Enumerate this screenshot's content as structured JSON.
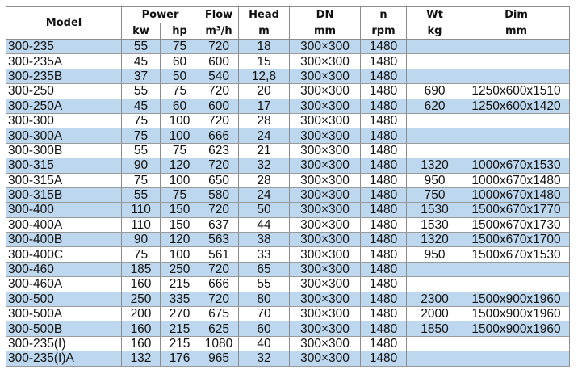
{
  "header": {
    "model": "Model",
    "power": "Power",
    "kw": "kw",
    "hp": "hp",
    "flow": "Flow",
    "flow_unit": "m³/h",
    "head": "Head",
    "head_unit": "m",
    "dn": "DN",
    "dn_unit": "mm",
    "n": "n",
    "n_unit": "rpm",
    "wt": "Wt",
    "wt_unit": "kg",
    "dim": "Dim",
    "dim_unit": "mm"
  },
  "colors": {
    "highlight": "#bdd7ee",
    "plain": "#ffffff"
  },
  "rows": [
    {
      "model": "300-235",
      "kw": "55",
      "hp": "75",
      "flow": "720",
      "head": "18",
      "dn": "300×300",
      "n": "1480",
      "wt": "",
      "dim": "",
      "highlighted": true
    },
    {
      "model": "300-235A",
      "kw": "45",
      "hp": "60",
      "flow": "600",
      "head": "15",
      "dn": "300×300",
      "n": "1480",
      "wt": "",
      "dim": "",
      "highlighted": false
    },
    {
      "model": "300-235B",
      "kw": "37",
      "hp": "50",
      "flow": "540",
      "head": "12,8",
      "dn": "300×300",
      "n": "1480",
      "wt": "",
      "dim": "",
      "highlighted": true
    },
    {
      "model": "300-250",
      "kw": "55",
      "hp": "75",
      "flow": "720",
      "head": "20",
      "dn": "300×300",
      "n": "1480",
      "wt": "690",
      "dim": "1250x600x1510",
      "highlighted": false
    },
    {
      "model": "300-250A",
      "kw": "45",
      "hp": "60",
      "flow": "600",
      "head": "17",
      "dn": "300×300",
      "n": "1480",
      "wt": "620",
      "dim": "1250x600x1420",
      "highlighted": true
    },
    {
      "model": "300-300",
      "kw": "75",
      "hp": "100",
      "flow": "720",
      "head": "28",
      "dn": "300×300",
      "n": "1480",
      "wt": "",
      "dim": "",
      "highlighted": false
    },
    {
      "model": "300-300A",
      "kw": "75",
      "hp": "100",
      "flow": "666",
      "head": "24",
      "dn": "300×300",
      "n": "1480",
      "wt": "",
      "dim": "",
      "highlighted": true
    },
    {
      "model": "300-300B",
      "kw": "55",
      "hp": "75",
      "flow": "623",
      "head": "21",
      "dn": "300×300",
      "n": "1480",
      "wt": "",
      "dim": "",
      "highlighted": false
    },
    {
      "model": "300-315",
      "kw": "90",
      "hp": "120",
      "flow": "720",
      "head": "32",
      "dn": "300×300",
      "n": "1480",
      "wt": "1320",
      "dim": "1000x670x1530",
      "highlighted": true
    },
    {
      "model": "300-315A",
      "kw": "75",
      "hp": "100",
      "flow": "650",
      "head": "28",
      "dn": "300×300",
      "n": "1480",
      "wt": "950",
      "dim": "1000x670x1480",
      "highlighted": false
    },
    {
      "model": "300-315B",
      "kw": "55",
      "hp": "75",
      "flow": "580",
      "head": "24",
      "dn": "300×300",
      "n": "1480",
      "wt": "750",
      "dim": "1000x670x1480",
      "highlighted": true
    },
    {
      "model": "300-400",
      "kw": "110",
      "hp": "150",
      "flow": "720",
      "head": "50",
      "dn": "300×300",
      "n": "1480",
      "wt": "1530",
      "dim": "1500x670x1770",
      "highlighted": true
    },
    {
      "model": "300-400A",
      "kw": "110",
      "hp": "150",
      "flow": "637",
      "head": "44",
      "dn": "300×300",
      "n": "1480",
      "wt": "1530",
      "dim": "1500x670x1730",
      "highlighted": false
    },
    {
      "model": "300-400B",
      "kw": "90",
      "hp": "120",
      "flow": "563",
      "head": "38",
      "dn": "300×300",
      "n": "1480",
      "wt": "1320",
      "dim": "1500x670x1700",
      "highlighted": true
    },
    {
      "model": "300-400C",
      "kw": "75",
      "hp": "100",
      "flow": "561",
      "head": "33",
      "dn": "300×300",
      "n": "1480",
      "wt": "950",
      "dim": "1500x670x1530",
      "highlighted": false
    },
    {
      "model": "300-460",
      "kw": "185",
      "hp": "250",
      "flow": "720",
      "head": "65",
      "dn": "300×300",
      "n": "1480",
      "wt": "",
      "dim": "",
      "highlighted": true
    },
    {
      "model": "300-460A",
      "kw": "160",
      "hp": "215",
      "flow": "666",
      "head": "55",
      "dn": "300×300",
      "n": "1480",
      "wt": "",
      "dim": "",
      "highlighted": false
    },
    {
      "model": "300-500",
      "kw": "250",
      "hp": "335",
      "flow": "720",
      "head": "80",
      "dn": "300×300",
      "n": "1480",
      "wt": "2300",
      "dim": "1500x900x1960",
      "highlighted": true
    },
    {
      "model": "300-500A",
      "kw": "200",
      "hp": "270",
      "flow": "675",
      "head": "70",
      "dn": "300×300",
      "n": "1480",
      "wt": "2000",
      "dim": "1500x900x1960",
      "highlighted": false
    },
    {
      "model": "300-500B",
      "kw": "160",
      "hp": "215",
      "flow": "625",
      "head": "60",
      "dn": "300×300",
      "n": "1480",
      "wt": "1850",
      "dim": "1500x900x1960",
      "highlighted": true
    },
    {
      "model": "300-235(I)",
      "kw": "160",
      "hp": "215",
      "flow": "1080",
      "head": "40",
      "dn": "300×300",
      "n": "1480",
      "wt": "",
      "dim": "",
      "highlighted": false
    },
    {
      "model": "300-235(I)A",
      "kw": "132",
      "hp": "176",
      "flow": "965",
      "head": "32",
      "dn": "300×300",
      "n": "1480",
      "wt": "",
      "dim": "",
      "highlighted": true
    }
  ]
}
